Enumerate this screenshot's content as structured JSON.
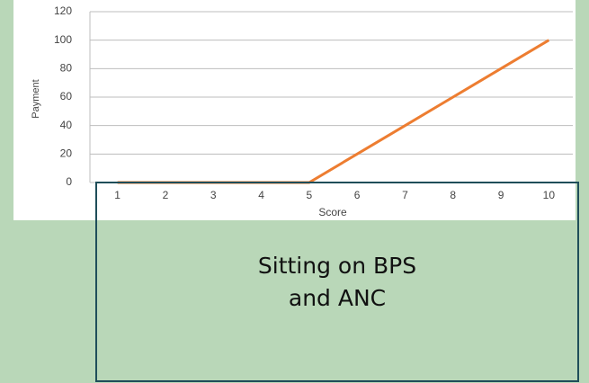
{
  "chart_data": {
    "type": "line",
    "categories": [
      "1",
      "2",
      "3",
      "4",
      "5",
      "6",
      "7",
      "8",
      "9",
      "10"
    ],
    "series": [
      {
        "name": "Payment",
        "color": "#ed7d31",
        "values": [
          0,
          0,
          0,
          0,
          0,
          20,
          40,
          60,
          80,
          100
        ]
      }
    ],
    "ylim": [
      0,
      120
    ],
    "yticks": [
      0,
      20,
      40,
      60,
      80,
      100,
      120
    ],
    "grid": true,
    "xlabel": "Score",
    "ylabel": "Payment",
    "annotations": [
      "Sitting on BPS",
      "and ANC"
    ]
  }
}
